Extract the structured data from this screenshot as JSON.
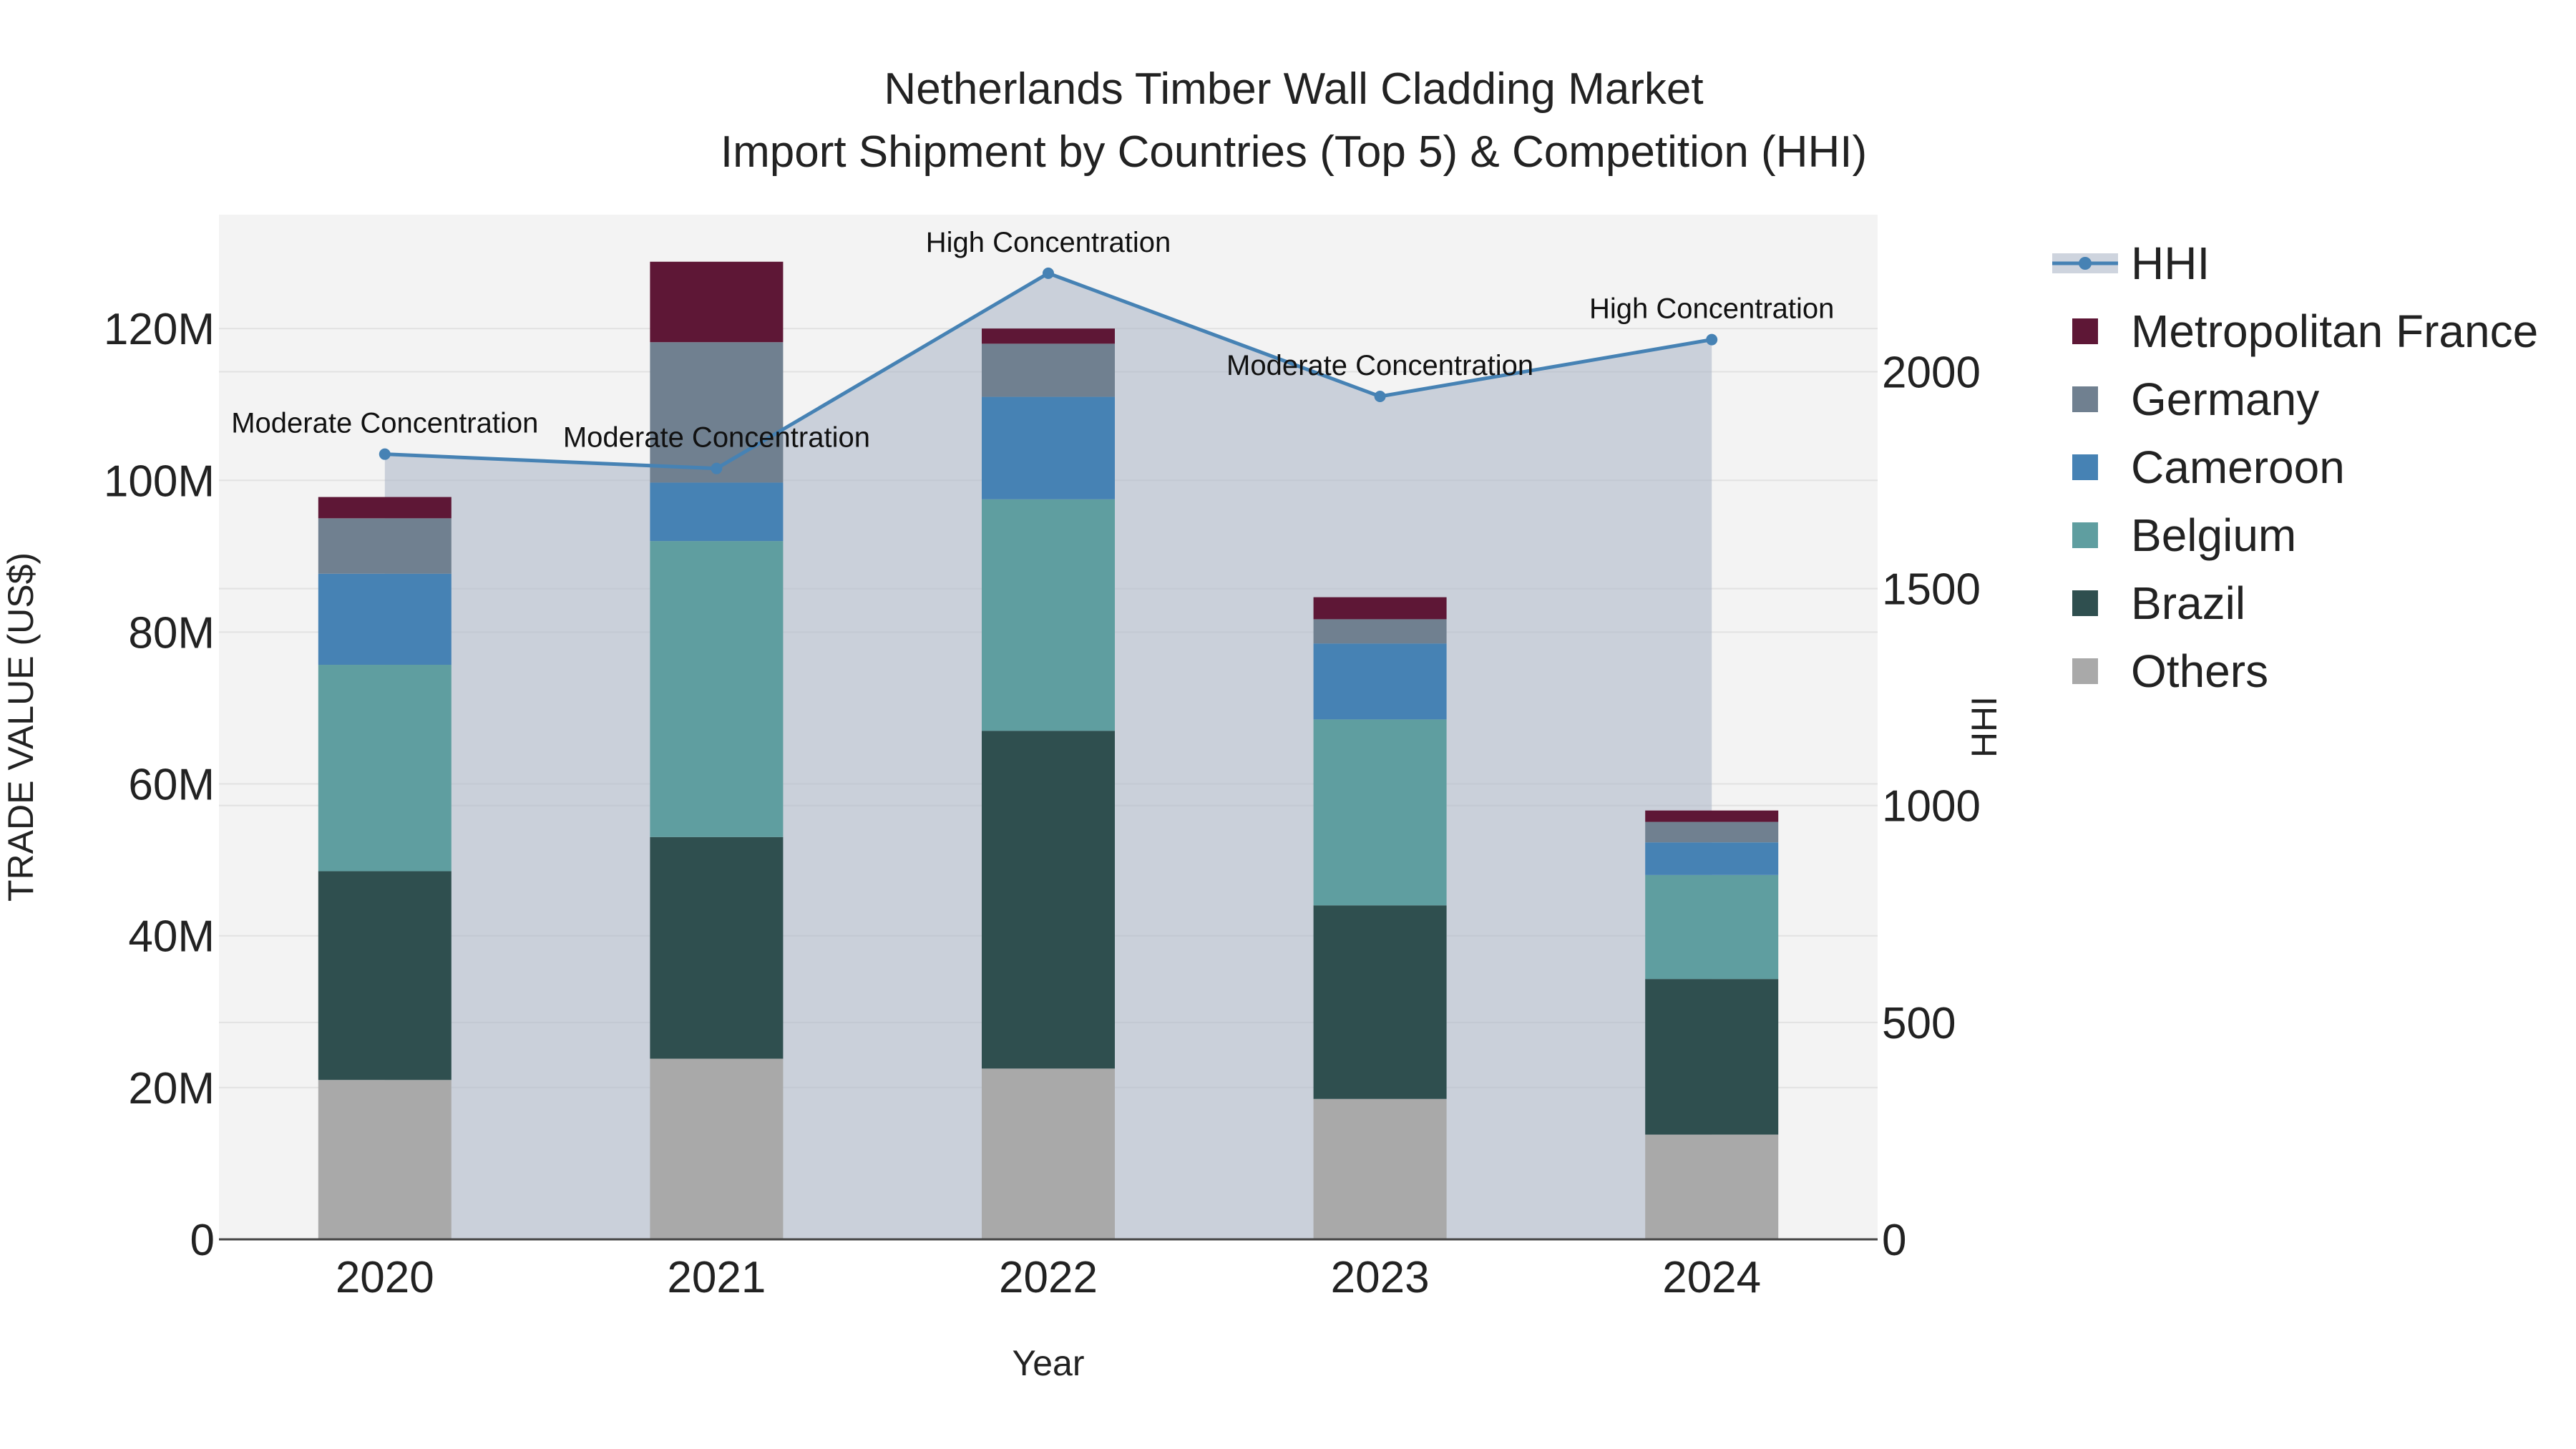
{
  "chart_data": {
    "type": "bar",
    "title_line1": "Netherlands Timber Wall Cladding Market",
    "title_line2": "Import Shipment by Countries (Top 5) & Competition (HHI)",
    "xlabel": "Year",
    "ylabel": "TRADE VALUE (US$)",
    "y2label": "HHI",
    "ylim": [
      0,
      135000000
    ],
    "y2lim": [
      0,
      2362
    ],
    "y_ticks": [
      {
        "value": 0,
        "label": "0"
      },
      {
        "value": 20000000,
        "label": "20M"
      },
      {
        "value": 40000000,
        "label": "40M"
      },
      {
        "value": 60000000,
        "label": "60M"
      },
      {
        "value": 80000000,
        "label": "80M"
      },
      {
        "value": 100000000,
        "label": "100M"
      },
      {
        "value": 120000000,
        "label": "120M"
      }
    ],
    "y2_ticks": [
      {
        "value": 0,
        "label": "0"
      },
      {
        "value": 500,
        "label": "500"
      },
      {
        "value": 1000,
        "label": "1000"
      },
      {
        "value": 1500,
        "label": "1500"
      },
      {
        "value": 2000,
        "label": "2000"
      }
    ],
    "categories": [
      "2020",
      "2021",
      "2022",
      "2023",
      "2024"
    ],
    "series": [
      {
        "name": "Others",
        "color": "#a9a9a9",
        "values": [
          21000000,
          23800000,
          22500000,
          18500000,
          13800000
        ]
      },
      {
        "name": "Brazil",
        "color": "#2f4f4f",
        "values": [
          27500000,
          29200000,
          44500000,
          25500000,
          20500000
        ]
      },
      {
        "name": "Belgium",
        "color": "#5f9ea0",
        "values": [
          27200000,
          39000000,
          30500000,
          24500000,
          13700000
        ]
      },
      {
        "name": "Cameroon",
        "color": "#4682b4",
        "values": [
          12000000,
          7700000,
          13500000,
          10000000,
          4300000
        ]
      },
      {
        "name": "Germany",
        "color": "#708090",
        "values": [
          7300000,
          18500000,
          7000000,
          3200000,
          2700000
        ]
      },
      {
        "name": "Metropolitan France",
        "color": "#5e1736",
        "values": [
          2800000,
          10600000,
          2000000,
          2900000,
          1500000
        ]
      }
    ],
    "hhi": {
      "name": "HHI",
      "color": "#4682b4",
      "values": [
        1810,
        1777,
        2227,
        1943,
        2074
      ],
      "annotations": [
        "Moderate Concentration",
        "Moderate Concentration",
        "High Concentration",
        "Moderate Concentration",
        "High Concentration"
      ]
    },
    "legend_order": [
      "HHI",
      "Metropolitan France",
      "Germany",
      "Cameroon",
      "Belgium",
      "Brazil",
      "Others"
    ],
    "legend_position": "right"
  }
}
